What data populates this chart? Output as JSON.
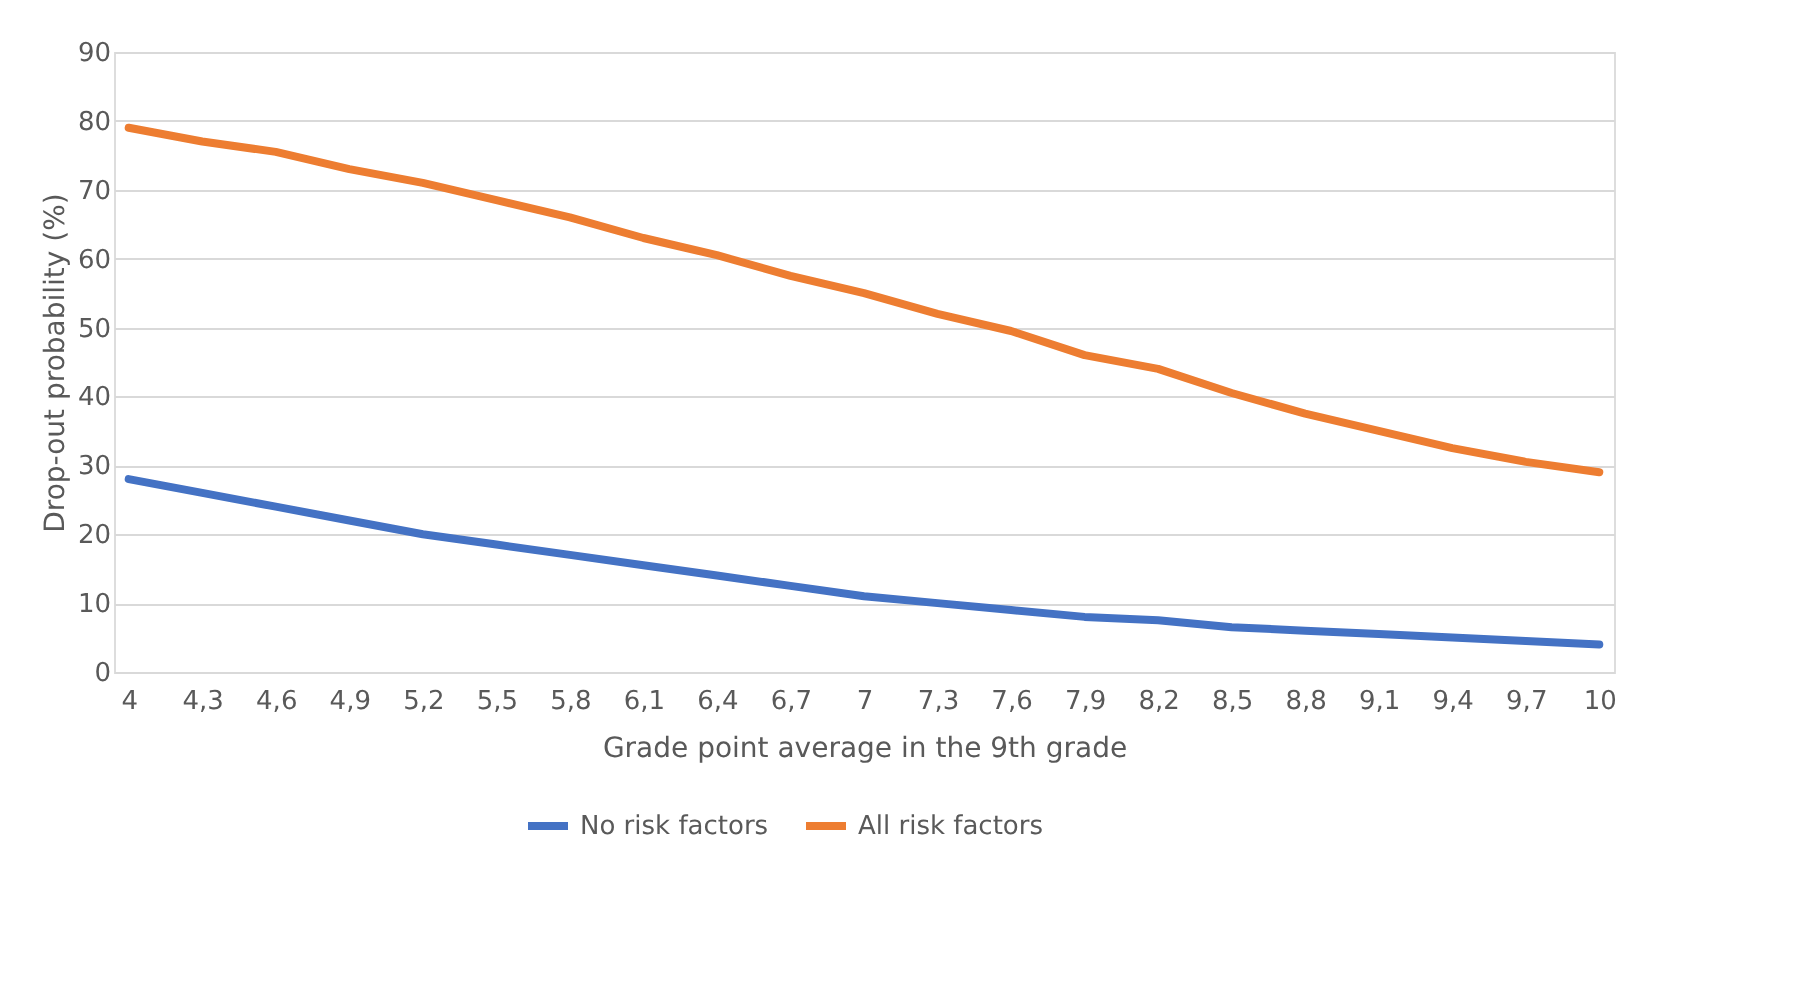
{
  "chart_data": {
    "type": "line",
    "xlabel": "Grade point average in the 9th grade",
    "ylabel": "Drop-out probability (%)",
    "categories": [
      "4",
      "4,3",
      "4,6",
      "4,9",
      "5,2",
      "5,5",
      "5,8",
      "6,1",
      "6,4",
      "6,7",
      "7",
      "7,3",
      "7,6",
      "7,9",
      "8,2",
      "8,5",
      "8,8",
      "9,1",
      "9,4",
      "9,7",
      "10"
    ],
    "series": [
      {
        "name": "No risk factors",
        "color": "#4472c4",
        "values": [
          28,
          26,
          24,
          22,
          20,
          18.5,
          17,
          15.5,
          14,
          12.5,
          11,
          10,
          9,
          8,
          7.5,
          6.5,
          6,
          5.5,
          5,
          4.5,
          4
        ]
      },
      {
        "name": "All risk factors",
        "color": "#ed7d31",
        "values": [
          79,
          77,
          75.5,
          73,
          71,
          68.5,
          66,
          63,
          60.5,
          57.5,
          55,
          52,
          49.5,
          46,
          44,
          40.5,
          37.5,
          35,
          32.5,
          30.5,
          29
        ]
      }
    ],
    "ylim": [
      0,
      90
    ],
    "yticks": [
      0,
      10,
      20,
      30,
      40,
      50,
      60,
      70,
      80,
      90
    ],
    "grid": "y",
    "legend": "bottom",
    "marker": "none",
    "line_style": "solid"
  }
}
